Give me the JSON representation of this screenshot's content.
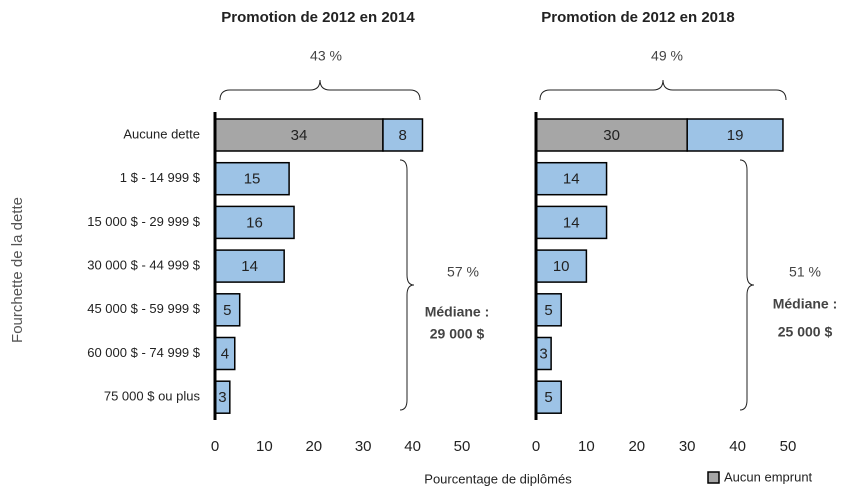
{
  "ylabel": "Fourchette de la dette",
  "xlabel": "Pourcentage de diplômés",
  "chart_data": [
    {
      "type": "bar",
      "orientation": "horizontal",
      "stacked": true,
      "title": "Promotion de 2012 en 2014",
      "categories": [
        "Aucune dette",
        "1 $ - 14 999 $",
        "15 000 $ - 29 999 $",
        "30 000 $ - 44 999 $",
        "45 000 $ - 59 999 $",
        "60 000 $ - 74 999 $",
        "75 000 $ ou plus"
      ],
      "series": [
        {
          "name": "Aucun emprunt",
          "color": "#a6a6a6",
          "values": [
            34,
            null,
            null,
            null,
            null,
            null,
            null
          ]
        },
        {
          "color": "#9dc3e6",
          "values": [
            8,
            15,
            16,
            14,
            5,
            4,
            3
          ]
        }
      ],
      "xlim": [
        0,
        50
      ],
      "xticks": [
        0,
        10,
        20,
        30,
        40,
        50
      ],
      "annotations": [
        "43 %",
        "57 %",
        "Médiane :",
        "29 000 $"
      ]
    },
    {
      "type": "bar",
      "orientation": "horizontal",
      "stacked": true,
      "title": "Promotion de 2012 en 2018",
      "categories": [
        "Aucune dette",
        "1 $ - 14 999 $",
        "15 000 $ - 29 999 $",
        "30 000 $ - 44 999 $",
        "45 000 $ - 59 999 $",
        "60 000 $ - 74 999 $",
        "75 000 $ ou plus"
      ],
      "series": [
        {
          "name": "Aucun emprunt",
          "color": "#a6a6a6",
          "values": [
            30,
            null,
            null,
            null,
            null,
            null,
            null
          ]
        },
        {
          "color": "#9dc3e6",
          "values": [
            19,
            14,
            14,
            10,
            5,
            3,
            5
          ]
        }
      ],
      "xlim": [
        0,
        50
      ],
      "xticks": [
        0,
        10,
        20,
        30,
        40,
        50
      ],
      "annotations": [
        "49 %",
        "51 %",
        "Médiane :",
        "25 000 $"
      ]
    }
  ]
}
